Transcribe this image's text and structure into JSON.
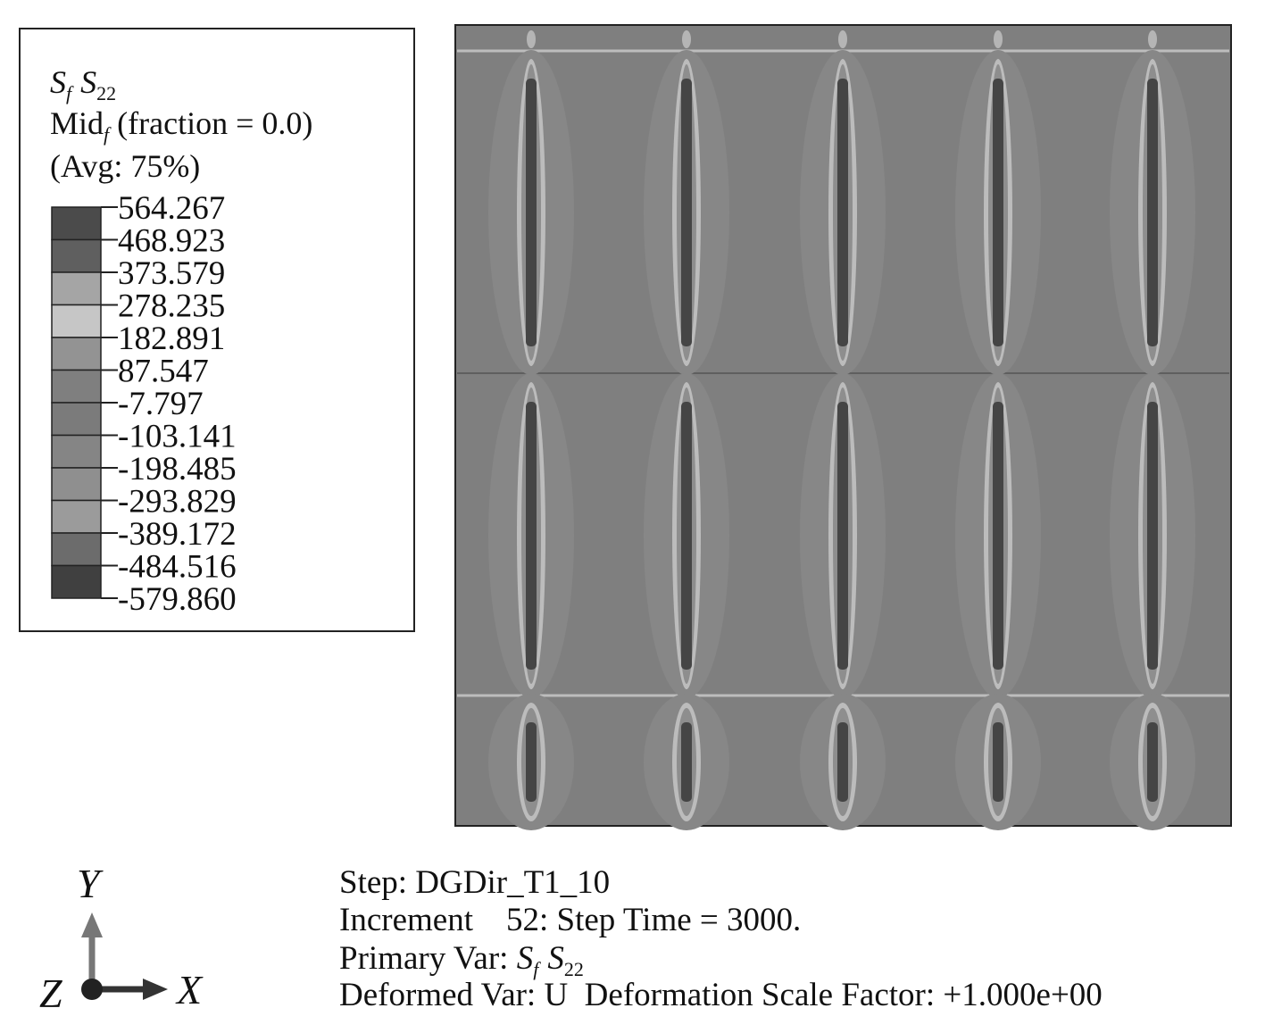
{
  "legend": {
    "variable": [
      {
        "main": "S",
        "sub": "f"
      },
      {
        "main": "S",
        "sub": "22"
      }
    ],
    "location": {
      "main": "Mid",
      "sub": "f",
      "rest": " (fraction = 0.0)"
    },
    "averaging": "(Avg: 75%)",
    "labels": [
      "564.267",
      "468.923",
      "373.579",
      "278.235",
      "182.891",
      "87.547",
      "-7.797",
      "-103.141",
      "-198.485",
      "-293.829",
      "-389.172",
      "-484.516",
      "-579.860"
    ],
    "colors": [
      "#4b4b4b",
      "#5f5f5f",
      "#a5a5a5",
      "#c6c6c6",
      "#939393",
      "#7f7f7f",
      "#7b7b7b",
      "#858585",
      "#8f8f8f",
      "#9b9b9b",
      "#6c6c6c",
      "#404040",
      "#333333"
    ]
  },
  "triad": {
    "y": "Y",
    "z": "Z",
    "x": "X"
  },
  "info": {
    "step": "Step: DGDir_T1_10",
    "increment": "Increment    52: Step Time = 3000.",
    "primary": {
      "prefix": "Primary Var: ",
      "variable": [
        {
          "main": "S",
          "sub": "f"
        },
        {
          "main": "S",
          "sub": "22"
        }
      ]
    },
    "deformed": "Deformed Var: U  Deformation Scale Factor: +1.000e+00"
  }
}
